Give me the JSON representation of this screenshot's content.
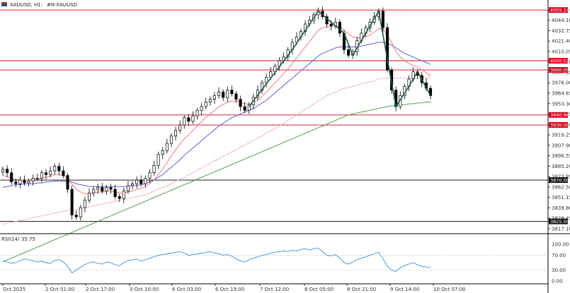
{
  "header": {
    "symbol_label": "XAUUSD, H1:",
    "symbol_desc": "#N-XAUUSD"
  },
  "colors": {
    "level_line": "#d9001b",
    "ma_fast": "#f07070",
    "ma_mid": "#5050d0",
    "ma_slow_light": "#f4b0b0",
    "ma_long": "#3c9a3c",
    "candle": "#000000",
    "rsi_line": "#3a8ee6",
    "separator": "#000000",
    "overlay_line": "#1f5a4a"
  },
  "chart_data": {
    "type": "candlestick",
    "title": "XAUUSD, H1: #N-XAUUSD",
    "ylim": [
      3817.0,
      4060.0
    ],
    "price_ticks": [
      "4055.24",
      "4044.10",
      "4032.75",
      "4021.40",
      "4010.05",
      "3998.70",
      "3987.35",
      "3976.00",
      "3964.65",
      "3953.30",
      "3941.95",
      "3930.60",
      "3919.25",
      "3907.90",
      "3896.55",
      "3885.20",
      "3873.85",
      "3862.50",
      "3851.15",
      "3839.80",
      "3828.45",
      "3817.10"
    ],
    "levels": [
      {
        "price": 4055.24,
        "label": "4055.24"
      },
      {
        "price": 4000.02,
        "label": "4000.02"
      },
      {
        "price": 3990.0,
        "label": "3990.00"
      },
      {
        "price": 3940.96,
        "label": "3940.96"
      },
      {
        "price": 3930.0,
        "label": "3930.00"
      },
      {
        "price": 3870.0,
        "label": "3870.00"
      },
      {
        "price": 3825.0,
        "label": "3825.00"
      }
    ],
    "time_labels": [
      "Oct 2025",
      "2 Oct 01:00",
      "2 Oct 17:00",
      "3 Oct 10:00",
      "6 Oct 03:00",
      "6 Oct 19:00",
      "7 Oct 12:00",
      "8 Oct 05:00",
      "8 Oct 21:00",
      "9 Oct 14:00",
      "10 Oct 07:00"
    ],
    "close_path": [
      3882,
      3878,
      3868,
      3866,
      3870,
      3867,
      3869,
      3872,
      3872,
      3878,
      3876,
      3880,
      3885,
      3880,
      3875,
      3860,
      3832,
      3830,
      3840,
      3848,
      3856,
      3860,
      3862,
      3858,
      3862,
      3860,
      3852,
      3850,
      3858,
      3864,
      3866,
      3870,
      3866,
      3872,
      3878,
      3886,
      3898,
      3902,
      3910,
      3918,
      3924,
      3930,
      3938,
      3934,
      3940,
      3946,
      3950,
      3955,
      3958,
      3962,
      3966,
      3960,
      3968,
      3964,
      3958,
      3950,
      3946,
      3952,
      3960,
      3968,
      3976,
      3982,
      3988,
      3994,
      4000,
      4004,
      4012,
      4020,
      4026,
      4032,
      4040,
      4044,
      4050,
      4054,
      4048,
      4040,
      4038,
      4042,
      4030,
      4012,
      4006,
      4010,
      4022,
      4030,
      4036,
      4042,
      4048,
      4054,
      4036,
      3990,
      3968,
      3950,
      3962,
      3972,
      3980,
      3988,
      3984,
      3976,
      3970,
      3962
    ],
    "ma_fast": [
      3875,
      3874,
      3872,
      3871,
      3870,
      3870,
      3870,
      3871,
      3871,
      3872,
      3873,
      3874,
      3876,
      3876,
      3875,
      3872,
      3866,
      3860,
      3857,
      3855,
      3855,
      3856,
      3857,
      3857,
      3858,
      3858,
      3857,
      3856,
      3856,
      3857,
      3858,
      3860,
      3861,
      3863,
      3866,
      3870,
      3876,
      3882,
      3889,
      3896,
      3903,
      3909,
      3915,
      3919,
      3924,
      3929,
      3934,
      3938,
      3942,
      3946,
      3950,
      3952,
      3955,
      3956,
      3956,
      3955,
      3953,
      3953,
      3954,
      3957,
      3961,
      3966,
      3971,
      3976,
      3981,
      3986,
      3991,
      3997,
      4003,
      4009,
      4015,
      4021,
      4027,
      4033,
      4036,
      4037,
      4037,
      4038,
      4037,
      4033,
      4029,
      4026,
      4025,
      4025,
      4026,
      4028,
      4031,
      4035,
      4035,
      4028,
      4020,
      4010,
      4004,
      4000,
      3997,
      3995,
      3993,
      3990,
      3987,
      3983
    ],
    "ma_mid": [
      3862,
      3863,
      3864,
      3865,
      3865,
      3866,
      3866,
      3866,
      3867,
      3867,
      3868,
      3868,
      3869,
      3869,
      3869,
      3869,
      3868,
      3866,
      3865,
      3864,
      3863,
      3863,
      3863,
      3863,
      3863,
      3863,
      3863,
      3863,
      3863,
      3863,
      3864,
      3864,
      3865,
      3866,
      3868,
      3870,
      3873,
      3876,
      3880,
      3884,
      3888,
      3892,
      3897,
      3901,
      3905,
      3909,
      3913,
      3917,
      3921,
      3925,
      3929,
      3932,
      3935,
      3938,
      3940,
      3942,
      3944,
      3946,
      3948,
      3951,
      3954,
      3957,
      3961,
      3965,
      3969,
      3973,
      3977,
      3981,
      3985,
      3989,
      3993,
      3997,
      4001,
      4005,
      4008,
      4010,
      4012,
      4014,
      4015,
      4015,
      4015,
      4015,
      4015,
      4016,
      4017,
      4018,
      4019,
      4020,
      4020,
      4019,
      4017,
      4014,
      4011,
      4008,
      4006,
      4004,
      4002,
      4000,
      3998,
      3996
    ],
    "ma_slow": [
      3822,
      3823,
      3824,
      3825,
      3826,
      3827,
      3828,
      3829,
      3830,
      3831,
      3832,
      3833,
      3834,
      3835,
      3836,
      3837,
      3837,
      3838,
      3839,
      3840,
      3841,
      3842,
      3843,
      3844,
      3845,
      3846,
      3847,
      3848,
      3849,
      3850,
      3851,
      3852,
      3853,
      3854,
      3856,
      3858,
      3860,
      3862,
      3864,
      3866,
      3869,
      3871,
      3873,
      3876,
      3878,
      3881,
      3883,
      3886,
      3888,
      3891,
      3893,
      3896,
      3898,
      3901,
      3903,
      3906,
      3908,
      3911,
      3913,
      3916,
      3918,
      3921,
      3924,
      3926,
      3929,
      3932,
      3935,
      3938,
      3941,
      3944,
      3947,
      3950,
      3953,
      3956,
      3959,
      3962,
      3964,
      3966,
      3968,
      3970,
      3971,
      3972,
      3973,
      3975,
      3976,
      3977,
      3978,
      3980,
      3981,
      3981,
      3981,
      3981,
      3981,
      3981,
      3981,
      3981,
      3981,
      3981,
      3981,
      3981
    ],
    "ma_long": [
      3781,
      3783,
      3785,
      3787,
      3789,
      3791,
      3793,
      3795,
      3797,
      3799,
      3801,
      3803,
      3805,
      3807,
      3809,
      3811,
      3813,
      3815,
      3817,
      3819,
      3821,
      3823,
      3825,
      3827,
      3829,
      3831,
      3833,
      3835,
      3837,
      3839,
      3841,
      3843,
      3845,
      3847,
      3849,
      3851,
      3853,
      3855,
      3857,
      3859,
      3861,
      3863,
      3865,
      3867,
      3869,
      3871,
      3873,
      3875,
      3877,
      3879,
      3881,
      3883,
      3885,
      3887,
      3889,
      3891,
      3893,
      3895,
      3897,
      3899,
      3901,
      3903,
      3905,
      3907,
      3909,
      3911,
      3913,
      3915,
      3917,
      3919,
      3921,
      3923,
      3925,
      3927,
      3929,
      3931,
      3933,
      3935,
      3937,
      3939,
      3941,
      3942,
      3943,
      3944,
      3945,
      3946,
      3947,
      3948,
      3949,
      3950,
      3951,
      3951,
      3952,
      3952,
      3953,
      3953,
      3954,
      3954,
      3955,
      3955
    ]
  },
  "rsi": {
    "label": "RSI(14) 35.75",
    "ticks": [
      "100.00",
      "70.00",
      "30.00",
      "0.00"
    ],
    "values": [
      55,
      52,
      48,
      50,
      56,
      60,
      58,
      55,
      52,
      54,
      50,
      48,
      56,
      58,
      52,
      40,
      22,
      30,
      38,
      45,
      50,
      52,
      48,
      46,
      52,
      50,
      44,
      42,
      50,
      56,
      58,
      60,
      54,
      58,
      62,
      66,
      70,
      72,
      74,
      76,
      78,
      80,
      76,
      70,
      72,
      74,
      75,
      78,
      80,
      76,
      74,
      70,
      72,
      68,
      60,
      55,
      52,
      58,
      62,
      66,
      70,
      72,
      76,
      78,
      80,
      82,
      80,
      84,
      82,
      86,
      88,
      84,
      88,
      90,
      80,
      70,
      68,
      72,
      62,
      50,
      46,
      52,
      58,
      62,
      66,
      70,
      74,
      78,
      60,
      40,
      30,
      26,
      36,
      42,
      46,
      50,
      44,
      40,
      38,
      36
    ]
  }
}
